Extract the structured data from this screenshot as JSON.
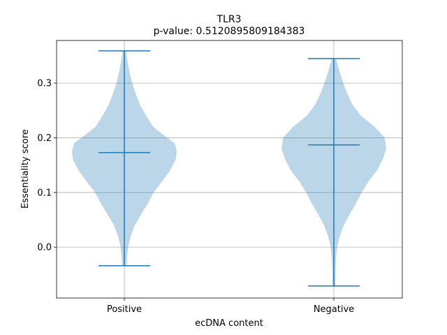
{
  "chart_data": {
    "type": "violin",
    "title": "TLR3",
    "subtitle": "p-value: 0.5120895809184383",
    "xlabel": "ecDNA content",
    "ylabel": "Essentiality score",
    "categories": [
      "Positive",
      "Negative"
    ],
    "ylim": [
      -0.093,
      0.378
    ],
    "yticks": [
      0.0,
      0.1,
      0.2,
      0.3
    ],
    "ytick_labels": [
      "0.0",
      "0.1",
      "0.2",
      "0.3"
    ],
    "grid": true,
    "colors": {
      "body": "#1f77b4",
      "lines": "#1f77b4",
      "grid": "#b0b0b0"
    },
    "violins": [
      {
        "category": "Positive",
        "min": -0.034,
        "max": 0.359,
        "mean": 0.173,
        "profile": [
          [
            -0.034,
            0.04
          ],
          [
            -0.02,
            0.05
          ],
          [
            0.0,
            0.07
          ],
          [
            0.02,
            0.12
          ],
          [
            0.04,
            0.2
          ],
          [
            0.06,
            0.32
          ],
          [
            0.08,
            0.45
          ],
          [
            0.1,
            0.56
          ],
          [
            0.12,
            0.72
          ],
          [
            0.14,
            0.87
          ],
          [
            0.16,
            0.98
          ],
          [
            0.175,
            1.0
          ],
          [
            0.19,
            0.96
          ],
          [
            0.2,
            0.82
          ],
          [
            0.22,
            0.55
          ],
          [
            0.24,
            0.42
          ],
          [
            0.26,
            0.3
          ],
          [
            0.28,
            0.22
          ],
          [
            0.3,
            0.15
          ],
          [
            0.32,
            0.1
          ],
          [
            0.34,
            0.06
          ],
          [
            0.359,
            0.03
          ]
        ]
      },
      {
        "category": "Negative",
        "min": -0.071,
        "max": 0.345,
        "mean": 0.187,
        "profile": [
          [
            -0.071,
            0.03
          ],
          [
            -0.05,
            0.03
          ],
          [
            -0.02,
            0.04
          ],
          [
            0.0,
            0.06
          ],
          [
            0.02,
            0.11
          ],
          [
            0.04,
            0.19
          ],
          [
            0.06,
            0.3
          ],
          [
            0.08,
            0.42
          ],
          [
            0.1,
            0.53
          ],
          [
            0.12,
            0.66
          ],
          [
            0.14,
            0.82
          ],
          [
            0.16,
            0.93
          ],
          [
            0.18,
            1.0
          ],
          [
            0.2,
            0.97
          ],
          [
            0.22,
            0.78
          ],
          [
            0.24,
            0.52
          ],
          [
            0.26,
            0.36
          ],
          [
            0.28,
            0.26
          ],
          [
            0.3,
            0.18
          ],
          [
            0.32,
            0.11
          ],
          [
            0.345,
            0.04
          ]
        ]
      }
    ]
  }
}
